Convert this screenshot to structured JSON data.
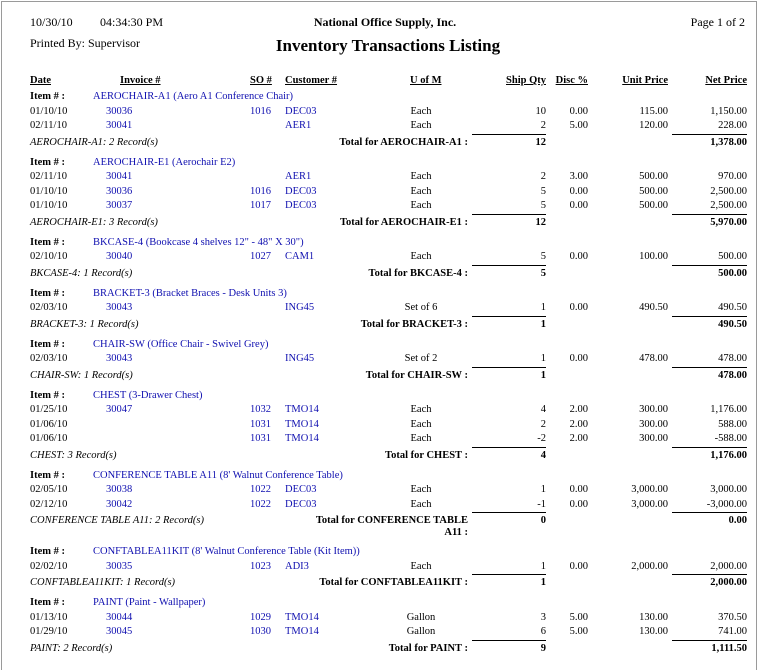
{
  "header": {
    "date": "10/30/10",
    "time": "04:34:30 PM",
    "company": "National Office Supply, Inc.",
    "page": "Page 1 of 2",
    "printed_by": "Printed By: Supervisor",
    "title": "Inventory Transactions Listing"
  },
  "columns": [
    "Date",
    "Invoice #",
    "SO #",
    "Customer #",
    "U of M",
    "Ship Qty",
    "Disc %",
    "Unit Price",
    "Net Price"
  ],
  "item_label": "Item # :",
  "groups": [
    {
      "item": "AEROCHAIR-A1 (Aero A1 Conference Chair)",
      "rows": [
        {
          "date": "01/10/10",
          "invoice": "30036",
          "so": "1016",
          "customer": "DEC03",
          "uom": "Each",
          "qty": "10",
          "disc": "0.00",
          "unit_price": "115.00",
          "net_price": "1,150.00"
        },
        {
          "date": "02/11/10",
          "invoice": "30041",
          "customer": "AER1",
          "uom": "Each",
          "qty": "2",
          "disc": "5.00",
          "unit_price": "120.00",
          "net_price": "228.00"
        }
      ],
      "summary": "AEROCHAIR-A1: 2 Record(s)",
      "total_label": "Total for AEROCHAIR-A1 :",
      "total_qty": "12",
      "total_net": "1,378.00"
    },
    {
      "item": "AEROCHAIR-E1 (Aerochair E2)",
      "rows": [
        {
          "date": "02/11/10",
          "invoice": "30041",
          "customer": "AER1",
          "uom": "Each",
          "qty": "2",
          "disc": "3.00",
          "unit_price": "500.00",
          "net_price": "970.00"
        },
        {
          "date": "01/10/10",
          "invoice": "30036",
          "so": "1016",
          "customer": "DEC03",
          "uom": "Each",
          "qty": "5",
          "disc": "0.00",
          "unit_price": "500.00",
          "net_price": "2,500.00"
        },
        {
          "date": "01/10/10",
          "invoice": "30037",
          "so": "1017",
          "customer": "DEC03",
          "uom": "Each",
          "qty": "5",
          "disc": "0.00",
          "unit_price": "500.00",
          "net_price": "2,500.00"
        }
      ],
      "summary": "AEROCHAIR-E1: 3 Record(s)",
      "total_label": "Total for AEROCHAIR-E1 :",
      "total_qty": "12",
      "total_net": "5,970.00"
    },
    {
      "item": "BKCASE-4 (Bookcase 4 shelves 12\" - 48\" X 30\")",
      "rows": [
        {
          "date": "02/10/10",
          "invoice": "30040",
          "so": "1027",
          "customer": "CAM1",
          "uom": "Each",
          "qty": "5",
          "disc": "0.00",
          "unit_price": "100.00",
          "net_price": "500.00"
        }
      ],
      "summary": "BKCASE-4: 1 Record(s)",
      "total_label": "Total for BKCASE-4 :",
      "total_qty": "5",
      "total_net": "500.00"
    },
    {
      "item": "BRACKET-3 (Bracket Braces - Desk Units 3)",
      "rows": [
        {
          "date": "02/03/10",
          "invoice": "30043",
          "customer": "ING45",
          "uom": "Set of 6",
          "qty": "1",
          "disc": "0.00",
          "unit_price": "490.50",
          "net_price": "490.50"
        }
      ],
      "summary": "BRACKET-3: 1 Record(s)",
      "total_label": "Total for BRACKET-3 :",
      "total_qty": "1",
      "total_net": "490.50"
    },
    {
      "item": "CHAIR-SW (Office Chair - Swivel Grey)",
      "rows": [
        {
          "date": "02/03/10",
          "invoice": "30043",
          "customer": "ING45",
          "uom": "Set of 2",
          "qty": "1",
          "disc": "0.00",
          "unit_price": "478.00",
          "net_price": "478.00"
        }
      ],
      "summary": "CHAIR-SW: 1 Record(s)",
      "total_label": "Total for CHAIR-SW :",
      "total_qty": "1",
      "total_net": "478.00"
    },
    {
      "item": "CHEST (3-Drawer Chest)",
      "rows": [
        {
          "date": "01/25/10",
          "invoice": "30047",
          "so": "1032",
          "customer": "TMO14",
          "uom": "Each",
          "qty": "4",
          "disc": "2.00",
          "unit_price": "300.00",
          "net_price": "1,176.00"
        },
        {
          "date": "01/06/10",
          "so": "1031",
          "customer": "TMO14",
          "uom": "Each",
          "qty": "2",
          "disc": "2.00",
          "unit_price": "300.00",
          "net_price": "588.00"
        },
        {
          "date": "01/06/10",
          "so": "1031",
          "customer": "TMO14",
          "uom": "Each",
          "qty": "-2",
          "disc": "2.00",
          "unit_price": "300.00",
          "net_price": "-588.00"
        }
      ],
      "summary": "CHEST: 3 Record(s)",
      "total_label": "Total for CHEST :",
      "total_qty": "4",
      "total_net": "1,176.00"
    },
    {
      "item": "CONFERENCE TABLE A11 (8' Walnut Conference Table)",
      "rows": [
        {
          "date": "02/05/10",
          "invoice": "30038",
          "so": "1022",
          "customer": "DEC03",
          "uom": "Each",
          "qty": "1",
          "disc": "0.00",
          "unit_price": "3,000.00",
          "net_price": "3,000.00"
        },
        {
          "date": "02/12/10",
          "invoice": "30042",
          "so": "1022",
          "customer": "DEC03",
          "uom": "Each",
          "qty": "-1",
          "disc": "0.00",
          "unit_price": "3,000.00",
          "net_price": "-3,000.00"
        }
      ],
      "summary": "CONFERENCE TABLE A11: 2 Record(s)",
      "total_label": "Total for CONFERENCE TABLE A11 :",
      "total_qty": "0",
      "total_net": "0.00"
    },
    {
      "item": "CONFTABLEA11KIT (8' Walnut Conference Table (Kit Item))",
      "rows": [
        {
          "date": "02/02/10",
          "invoice": "30035",
          "so": "1023",
          "customer": "ADI3",
          "uom": "Each",
          "qty": "1",
          "disc": "0.00",
          "unit_price": "2,000.00",
          "net_price": "2,000.00"
        }
      ],
      "summary": "CONFTABLEA11KIT: 1 Record(s)",
      "total_label": "Total for CONFTABLEA11KIT :",
      "total_qty": "1",
      "total_net": "2,000.00"
    },
    {
      "item": "PAINT (Paint - Wallpaper)",
      "rows": [
        {
          "date": "01/13/10",
          "invoice": "30044",
          "so": "1029",
          "customer": "TMO14",
          "uom": "Gallon",
          "qty": "3",
          "disc": "5.00",
          "unit_price": "130.00",
          "net_price": "370.50"
        },
        {
          "date": "01/29/10",
          "invoice": "30045",
          "so": "1030",
          "customer": "TMO14",
          "uom": "Gallon",
          "qty": "6",
          "disc": "5.00",
          "unit_price": "130.00",
          "net_price": "741.00"
        }
      ],
      "summary": "PAINT: 2 Record(s)",
      "total_label": "Total for PAINT :",
      "total_qty": "9",
      "total_net": "1,111.50"
    }
  ]
}
